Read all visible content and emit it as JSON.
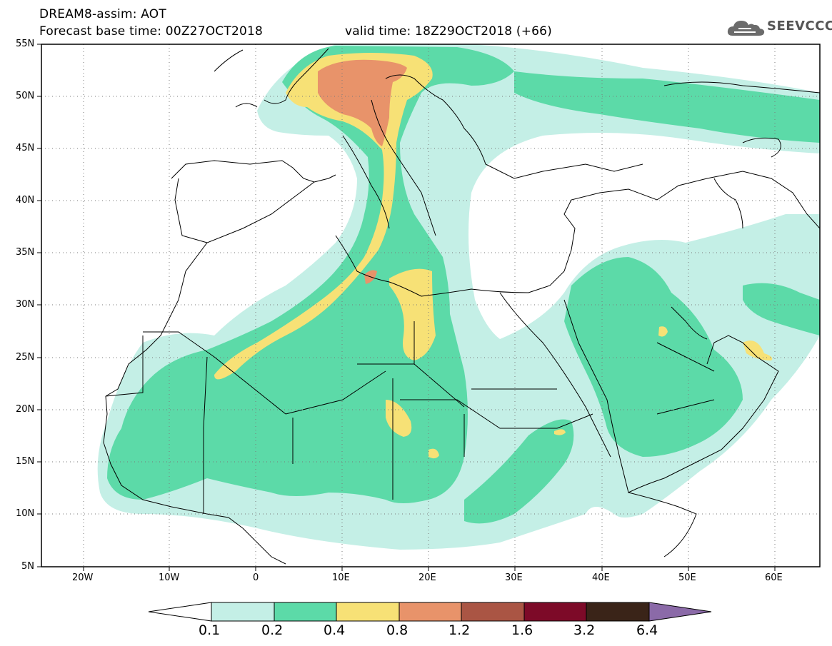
{
  "header": {
    "title_line1": "DREAM8-assim: AOT",
    "title_line2": "Forecast base time: 00Z27OCT2018",
    "valid_time": "valid time: 18Z29OCT2018 (+66)",
    "logo_text": "SEEVCCC"
  },
  "axes": {
    "lat_labels": [
      "55N",
      "50N",
      "45N",
      "40N",
      "35N",
      "30N",
      "25N",
      "20N",
      "15N",
      "10N",
      "5N"
    ],
    "lat_values": [
      55,
      50,
      45,
      40,
      35,
      30,
      25,
      20,
      15,
      10,
      5
    ],
    "lon_labels": [
      "20W",
      "10W",
      "0",
      "10E",
      "20E",
      "30E",
      "40E",
      "50E",
      "60E"
    ],
    "lon_values": [
      -20,
      -10,
      0,
      10,
      20,
      30,
      40,
      50,
      60
    ],
    "lon_range": [
      -25,
      65
    ],
    "lat_range": [
      5,
      55
    ],
    "grid": "dotted"
  },
  "colorbar": {
    "labels": [
      "0.1",
      "0.2",
      "0.4",
      "0.8",
      "1.2",
      "1.6",
      "3.2",
      "6.4"
    ],
    "colors": [
      "#c4efe6",
      "#5cdaa8",
      "#f7e176",
      "#e8936a",
      "#aa5544",
      "#7d0a28",
      "#3a2418",
      "#8b6aa8"
    ],
    "below_color": "#ffffff"
  }
}
